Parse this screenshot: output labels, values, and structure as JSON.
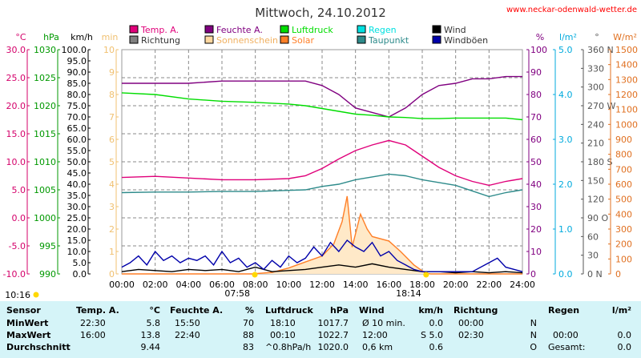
{
  "header": {
    "title": "Mittwoch, 24.10.2012",
    "site": "www.neckar-odenwald-wetter.de"
  },
  "chart_data": {
    "type": "line",
    "x_ticks": [
      "00:00",
      "02:00",
      "04:00",
      "06:00",
      "08:00",
      "10:00",
      "12:00",
      "14:00",
      "16:00",
      "18:00",
      "20:00",
      "22:00",
      "24:00"
    ],
    "axes_left": [
      {
        "unit": "°C",
        "color": "#d4006a",
        "ticks": [
          "30.0",
          "25.0",
          "20.0",
          "15.0",
          "10.0",
          "5.0",
          "0.0",
          "-5.0",
          "-10.0"
        ]
      },
      {
        "unit": "hPa",
        "color": "#009900",
        "ticks": [
          "1030",
          "1025",
          "1020",
          "1015",
          "1010",
          "1005",
          "1000",
          "995",
          "990"
        ]
      },
      {
        "unit": "km/h",
        "color": "#000000",
        "ticks": [
          "100.0",
          "95.0",
          "90.0",
          "85.0",
          "80.0",
          "75.0",
          "70.0",
          "65.0",
          "60.0",
          "55.0",
          "50.0",
          "45.0",
          "40.0",
          "35.0",
          "30.0",
          "25.0",
          "20.0",
          "15.0",
          "10.0",
          "5.0",
          "0.0"
        ]
      },
      {
        "unit": "min",
        "color": "#f0c070",
        "ticks": [
          "10",
          "9",
          "8",
          "7",
          "6",
          "5",
          "4",
          "3",
          "2",
          "1",
          "0"
        ]
      }
    ],
    "axes_right": [
      {
        "unit": "%",
        "color": "#800080",
        "ticks": [
          "100",
          "90",
          "80",
          "70",
          "60",
          "50",
          "40",
          "30",
          "20",
          "10",
          "0"
        ]
      },
      {
        "unit": "l/m²",
        "color": "#00aadd",
        "ticks": [
          "5.0",
          "4.0",
          "3.0",
          "2.0",
          "1.0",
          "0.0"
        ]
      },
      {
        "unit": "°",
        "color": "#555555",
        "ticks": [
          "360 N",
          "330",
          "300",
          "270 W",
          "240",
          "210",
          "180 S",
          "150",
          "120",
          "90 O",
          "60",
          "30",
          "0 N"
        ]
      },
      {
        "unit": "W/m²",
        "color": "#e07020",
        "ticks": [
          "1500",
          "1400",
          "1300",
          "1200",
          "1100",
          "1000",
          "900",
          "800",
          "700",
          "600",
          "500",
          "400",
          "300",
          "200",
          "100",
          "0"
        ]
      }
    ],
    "legend": [
      {
        "label": "Temp. A.",
        "color": "#e0007a"
      },
      {
        "label": "Feuchte A.",
        "color": "#800080"
      },
      {
        "label": "Luftdruck",
        "color": "#00dd00"
      },
      {
        "label": "Regen",
        "color": "#00e0e0"
      },
      {
        "label": "Wind",
        "color": "#000000"
      },
      {
        "label": "Richtung",
        "color": "#808080"
      },
      {
        "label": "Sonnenschein",
        "color": "#ffd8a0"
      },
      {
        "label": "Solar",
        "color": "#ff7f27"
      },
      {
        "label": "Taupunkt",
        "color": "#2e8b8b"
      },
      {
        "label": "Windböen",
        "color": "#0000aa"
      }
    ],
    "sunrise": {
      "label": "07:58",
      "hour": 7.97
    },
    "sunset": {
      "label": "18:14",
      "hour": 18.23
    },
    "start_label": "10:16",
    "series": [
      {
        "name": "Temp. A.",
        "axis": "°C",
        "color": "#e0007a",
        "points": [
          [
            0,
            7.2
          ],
          [
            2,
            7.4
          ],
          [
            4,
            7.1
          ],
          [
            6,
            6.8
          ],
          [
            8,
            6.8
          ],
          [
            10,
            7.0
          ],
          [
            11,
            7.5
          ],
          [
            12,
            8.8
          ],
          [
            13,
            10.5
          ],
          [
            14,
            12.0
          ],
          [
            15,
            13.0
          ],
          [
            16,
            13.8
          ],
          [
            17,
            13.0
          ],
          [
            18,
            11.0
          ],
          [
            19,
            9.0
          ],
          [
            20,
            7.5
          ],
          [
            21,
            6.5
          ],
          [
            22,
            5.8
          ],
          [
            23,
            6.5
          ],
          [
            24,
            7.0
          ]
        ]
      },
      {
        "name": "Feuchte A.",
        "axis": "%",
        "color": "#800080",
        "points": [
          [
            0,
            85
          ],
          [
            2,
            85
          ],
          [
            4,
            85
          ],
          [
            6,
            86
          ],
          [
            8,
            86
          ],
          [
            10,
            86
          ],
          [
            11,
            86
          ],
          [
            12,
            84
          ],
          [
            13,
            80
          ],
          [
            14,
            74
          ],
          [
            15,
            72
          ],
          [
            16,
            70
          ],
          [
            17,
            74
          ],
          [
            18,
            80
          ],
          [
            19,
            84
          ],
          [
            20,
            85
          ],
          [
            21,
            87
          ],
          [
            22,
            87
          ],
          [
            23,
            88
          ],
          [
            24,
            88
          ]
        ]
      },
      {
        "name": "Luftdruck",
        "axis": "hPa",
        "color": "#00dd00",
        "points": [
          [
            0,
            1022.3
          ],
          [
            2,
            1022.0
          ],
          [
            4,
            1021.2
          ],
          [
            6,
            1020.8
          ],
          [
            8,
            1020.6
          ],
          [
            10,
            1020.3
          ],
          [
            11,
            1020.0
          ],
          [
            12,
            1019.5
          ],
          [
            13,
            1019.0
          ],
          [
            14,
            1018.5
          ],
          [
            15,
            1018.3
          ],
          [
            16,
            1018.0
          ],
          [
            17,
            1017.9
          ],
          [
            18,
            1017.7
          ],
          [
            19,
            1017.7
          ],
          [
            20,
            1017.8
          ],
          [
            21,
            1017.8
          ],
          [
            22,
            1017.8
          ],
          [
            23,
            1017.8
          ],
          [
            24,
            1017.5
          ]
        ]
      },
      {
        "name": "Taupunkt",
        "axis": "°C",
        "color": "#2e8b8b",
        "points": [
          [
            0,
            4.5
          ],
          [
            2,
            4.6
          ],
          [
            4,
            4.6
          ],
          [
            6,
            4.7
          ],
          [
            8,
            4.7
          ],
          [
            10,
            4.9
          ],
          [
            11,
            5.0
          ],
          [
            12,
            5.6
          ],
          [
            13,
            6.0
          ],
          [
            14,
            6.8
          ],
          [
            15,
            7.3
          ],
          [
            16,
            7.8
          ],
          [
            17,
            7.5
          ],
          [
            18,
            6.8
          ],
          [
            19,
            6.3
          ],
          [
            20,
            5.8
          ],
          [
            21,
            4.8
          ],
          [
            22,
            3.8
          ],
          [
            23,
            4.5
          ],
          [
            24,
            5.0
          ]
        ]
      },
      {
        "name": "Solar",
        "axis": "W/m²",
        "color": "#ff7f27",
        "points": [
          [
            0,
            0
          ],
          [
            7.8,
            0
          ],
          [
            9,
            10
          ],
          [
            10,
            40
          ],
          [
            11,
            80
          ],
          [
            12,
            120
          ],
          [
            12.7,
            200
          ],
          [
            13.2,
            350
          ],
          [
            13.5,
            520
          ],
          [
            13.8,
            180
          ],
          [
            14.3,
            400
          ],
          [
            14.7,
            300
          ],
          [
            15,
            250
          ],
          [
            16,
            220
          ],
          [
            16.7,
            150
          ],
          [
            17.5,
            60
          ],
          [
            18.2,
            5
          ],
          [
            18.5,
            0
          ],
          [
            24,
            0
          ]
        ]
      },
      {
        "name": "Wind",
        "axis": "km/h",
        "color": "#000000",
        "points": [
          [
            0,
            1
          ],
          [
            1,
            2
          ],
          [
            2,
            1.5
          ],
          [
            3,
            1
          ],
          [
            4,
            2
          ],
          [
            5,
            1.5
          ],
          [
            6,
            2
          ],
          [
            7,
            1
          ],
          [
            8,
            3
          ],
          [
            9,
            1
          ],
          [
            10,
            1.5
          ],
          [
            11,
            2
          ],
          [
            12,
            3
          ],
          [
            13,
            4
          ],
          [
            14,
            3
          ],
          [
            15,
            4.5
          ],
          [
            16,
            3
          ],
          [
            17,
            2
          ],
          [
            18,
            1
          ],
          [
            19,
            1
          ],
          [
            20,
            0.5
          ],
          [
            21,
            1
          ],
          [
            22,
            0.5
          ],
          [
            23,
            1
          ],
          [
            24,
            0.5
          ]
        ]
      },
      {
        "name": "Windböen",
        "axis": "km/h",
        "color": "#0000aa",
        "points": [
          [
            0,
            3
          ],
          [
            0.5,
            5
          ],
          [
            1,
            8
          ],
          [
            1.5,
            4
          ],
          [
            2,
            10
          ],
          [
            2.5,
            6
          ],
          [
            3,
            8
          ],
          [
            3.5,
            5
          ],
          [
            4,
            7
          ],
          [
            4.5,
            6
          ],
          [
            5,
            8
          ],
          [
            5.5,
            4
          ],
          [
            6,
            10
          ],
          [
            6.5,
            5
          ],
          [
            7,
            7
          ],
          [
            7.5,
            3
          ],
          [
            8,
            5
          ],
          [
            8.5,
            2
          ],
          [
            9,
            6
          ],
          [
            9.5,
            3
          ],
          [
            10,
            8
          ],
          [
            10.5,
            5
          ],
          [
            11,
            7
          ],
          [
            11.5,
            12
          ],
          [
            12,
            8
          ],
          [
            12.5,
            14
          ],
          [
            13,
            10
          ],
          [
            13.5,
            15
          ],
          [
            14,
            12
          ],
          [
            14.5,
            10
          ],
          [
            15,
            14
          ],
          [
            15.5,
            8
          ],
          [
            16,
            10
          ],
          [
            16.5,
            6
          ],
          [
            17,
            4
          ],
          [
            17.5,
            2
          ],
          [
            18,
            1
          ],
          [
            19,
            1
          ],
          [
            20,
            1
          ],
          [
            21,
            1
          ],
          [
            22,
            5
          ],
          [
            22.5,
            7
          ],
          [
            23,
            3
          ],
          [
            24,
            1
          ]
        ]
      }
    ],
    "rain_total": 0.0
  },
  "stats": {
    "headers": {
      "sensor": "Sensor",
      "temp": "Temp. A.",
      "temp_unit": "°C",
      "hum": "Feuchte A.",
      "hum_unit": "%",
      "press": "Luftdruck",
      "press_unit": "hPa",
      "wind": "Wind",
      "wind_unit": "km/h",
      "dir": "Richtung",
      "rain": "Regen",
      "rain_unit": "l/m²"
    },
    "rows": [
      {
        "label": "MinWert",
        "temp_time": "22:30",
        "temp_val": "5.8",
        "hum_time": "15:50",
        "hum_val": "70",
        "press_time": "18:10",
        "press_val": "1017.7",
        "wind_desc": "Ø 10 min.",
        "wind_val": "0.0",
        "dir_time": "00:00",
        "dir_val": "N",
        "rain_label": "",
        "rain_val": ""
      },
      {
        "label": "MaxWert",
        "temp_time": "16:00",
        "temp_val": "13.8",
        "hum_time": "22:40",
        "hum_val": "88",
        "press_time": "00:10",
        "press_val": "1022.7",
        "wind_desc": "12:00",
        "wind_val": "S 5.0",
        "dir_time": "02:30",
        "dir_val": "N",
        "rain_label": "00:00",
        "rain_val": "0.0"
      },
      {
        "label": "Durchschnitt",
        "temp_time": "",
        "temp_val": "9.44",
        "hum_time": "",
        "hum_val": "83",
        "press_time": "^0.8hPa/h",
        "press_val": "1020.0",
        "wind_desc": "0,6 km",
        "wind_val": "0.6",
        "dir_time": "",
        "dir_val": "O",
        "rain_label": "Gesamt:",
        "rain_val": "0.0"
      }
    ]
  }
}
